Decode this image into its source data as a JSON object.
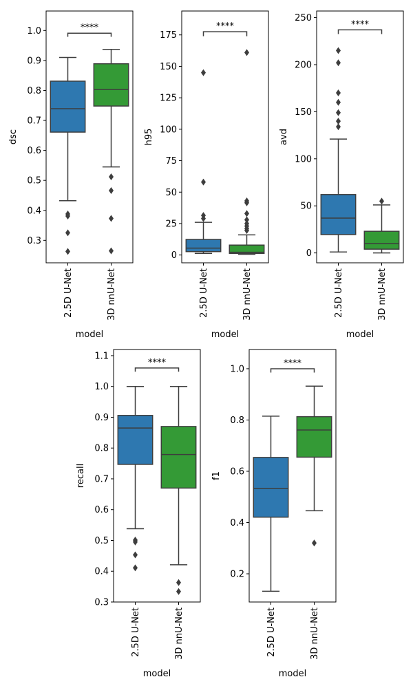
{
  "colors": {
    "2.5D U-Net": "#2e78b0",
    "3D nnU-Net": "#349a36",
    "lines": "#3d3d3d",
    "axes": "#000000"
  },
  "chart_data": [
    {
      "type": "box",
      "xlabel": "model",
      "ylabel": "dsc",
      "categories": [
        "2.5D U-Net",
        "3D nnU-Net"
      ],
      "ylim": [
        0.225,
        1.065
      ],
      "yticks": [
        0.3,
        0.4,
        0.5,
        0.6,
        0.7,
        0.8,
        0.9,
        1.0
      ],
      "ytick_labels": [
        "0.3",
        "0.4",
        "0.5",
        "0.6",
        "0.7",
        "0.8",
        "0.9",
        "1.0"
      ],
      "boxes": [
        {
          "name": "2.5D U-Net",
          "whisker_low": 0.432,
          "q1": 0.661,
          "median": 0.739,
          "q3": 0.831,
          "whisker_high": 0.91,
          "outliers": [
            0.388,
            0.381,
            0.325,
            0.263
          ]
        },
        {
          "name": "3D nnU-Net",
          "whisker_low": 0.545,
          "q1": 0.748,
          "median": 0.803,
          "q3": 0.889,
          "whisker_high": 0.937,
          "outliers": [
            0.512,
            0.466,
            0.373,
            0.265
          ]
        }
      ],
      "significance": {
        "label": "****",
        "y": 0.991,
        "tick": 0.012
      }
    },
    {
      "type": "box",
      "xlabel": "model",
      "ylabel": "h95",
      "categories": [
        "2.5D U-Net",
        "3D nnU-Net"
      ],
      "ylim": [
        -6.2,
        194.0
      ],
      "yticks": [
        0,
        25,
        50,
        75,
        100,
        125,
        150,
        175
      ],
      "ytick_labels": [
        "0",
        "25",
        "50",
        "75",
        "100",
        "125",
        "150",
        "175"
      ],
      "boxes": [
        {
          "name": "2.5D U-Net",
          "whisker_low": 1.3,
          "q1": 2.7,
          "median": 5.5,
          "q3": 12.4,
          "whisker_high": 26.0,
          "outliers": [
            145.0,
            58.0,
            31.5,
            29.0
          ]
        },
        {
          "name": "3D nnU-Net",
          "whisker_low": 0.6,
          "q1": 1.3,
          "median": 2.2,
          "q3": 7.9,
          "whisker_high": 16.0,
          "outliers": [
            161.0,
            43.0,
            41.5,
            33.0,
            28.0,
            25.0,
            23.0,
            21.0,
            19.5
          ]
        }
      ],
      "significance": {
        "label": "****",
        "y": 177.5,
        "tick": 3.5
      }
    },
    {
      "type": "box",
      "xlabel": "model",
      "ylabel": "avd",
      "categories": [
        "2.5D U-Net",
        "3D nnU-Net"
      ],
      "ylim": [
        -10.5,
        257.0
      ],
      "yticks": [
        0,
        50,
        100,
        150,
        200,
        250
      ],
      "ytick_labels": [
        "0",
        "50",
        "100",
        "150",
        "200",
        "250"
      ],
      "boxes": [
        {
          "name": "2.5D U-Net",
          "whisker_low": 1.0,
          "q1": 19.5,
          "median": 37.0,
          "q3": 62.0,
          "whisker_high": 121.0,
          "outliers": [
            215.0,
            202.0,
            170.0,
            160.0,
            149.0,
            140.0,
            134.0
          ]
        },
        {
          "name": "3D nnU-Net",
          "whisker_low": 0.0,
          "q1": 4.0,
          "median": 10.0,
          "q3": 23.0,
          "whisker_high": 51.0,
          "outliers": [
            55.0
          ]
        }
      ],
      "significance": {
        "label": "****",
        "y": 237.0,
        "tick": 4.5
      }
    },
    {
      "type": "box",
      "xlabel": "model",
      "ylabel": "recall",
      "categories": [
        "2.5D U-Net",
        "3D nnU-Net"
      ],
      "ylim": [
        0.3,
        1.12
      ],
      "yticks": [
        0.3,
        0.4,
        0.5,
        0.6,
        0.7,
        0.8,
        0.9,
        1.0,
        1.1
      ],
      "ytick_labels": [
        "0.3",
        "0.4",
        "0.5",
        "0.6",
        "0.7",
        "0.8",
        "0.9",
        "1.0",
        "1.1"
      ],
      "boxes": [
        {
          "name": "2.5D U-Net",
          "whisker_low": 0.538,
          "q1": 0.747,
          "median": 0.865,
          "q3": 0.906,
          "whisker_high": 1.0,
          "outliers": [
            0.501,
            0.495,
            0.453,
            0.411
          ]
        },
        {
          "name": "3D nnU-Net",
          "whisker_low": 0.421,
          "q1": 0.67,
          "median": 0.779,
          "q3": 0.87,
          "whisker_high": 1.0,
          "outliers": [
            0.363,
            0.334
          ]
        }
      ],
      "significance": {
        "label": "****",
        "y": 1.06,
        "tick": 0.012
      }
    },
    {
      "type": "box",
      "xlabel": "model",
      "ylabel": "f1",
      "categories": [
        "2.5D U-Net",
        "3D nnU-Net"
      ],
      "ylim": [
        0.09,
        1.075
      ],
      "yticks": [
        0.2,
        0.4,
        0.6,
        0.8,
        1.0
      ],
      "ytick_labels": [
        "0.2",
        "0.4",
        "0.6",
        "0.8",
        "1.0"
      ],
      "boxes": [
        {
          "name": "2.5D U-Net",
          "whisker_low": 0.132,
          "q1": 0.421,
          "median": 0.533,
          "q3": 0.654,
          "whisker_high": 0.815,
          "outliers": []
        },
        {
          "name": "3D nnU-Net",
          "whisker_low": 0.446,
          "q1": 0.655,
          "median": 0.761,
          "q3": 0.813,
          "whisker_high": 0.932,
          "outliers": [
            0.32
          ]
        }
      ],
      "significance": {
        "label": "****",
        "y": 1.0,
        "tick": 0.015
      }
    }
  ]
}
